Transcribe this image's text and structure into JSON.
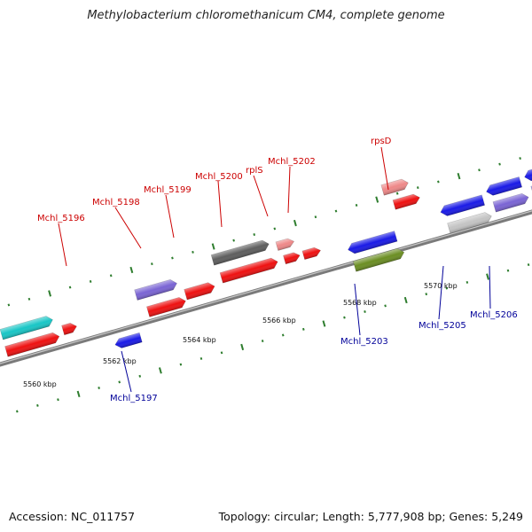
{
  "title": "Methylobacterium chloromethanicum CM4, complete genome",
  "accession": "Accession: NC_011757",
  "summary": "Topology: circular; Length: 5,777,908 bp; Genes: 5,249",
  "colors": {
    "label_top": "#cc0000",
    "label_bottom": "#000099",
    "backbone": "#888888",
    "tick_dots": "#2e8b2e"
  },
  "ticks": [
    "5560 kbp",
    "5562 kbp",
    "5564 kbp",
    "5566 kbp",
    "5568 kbp",
    "5570 kbp"
  ],
  "genes_top": [
    "Mchl_5196",
    "Mchl_5198",
    "Mchl_5199",
    "Mchl_5200",
    "rplS",
    "Mchl_5202",
    "rpsD"
  ],
  "genes_bottom": [
    "Mchl_5197",
    "Mchl_5203",
    "Mchl_5205",
    "Mchl_5206"
  ]
}
